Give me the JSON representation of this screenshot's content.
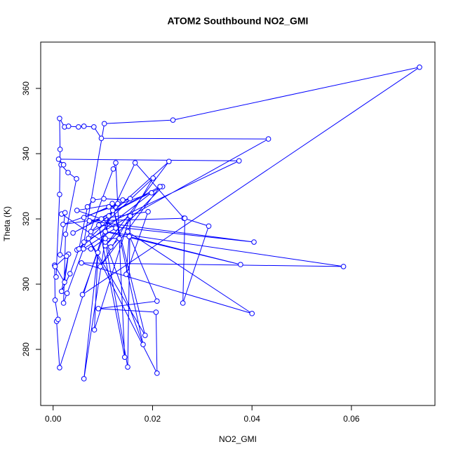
{
  "chart_data": {
    "type": "line",
    "title": "ATOM2 Southbound NO2_GMI",
    "x_label": "NO2_GMI",
    "y_label": "Theta (K)",
    "x": [
      0.0006,
      0.0013,
      0.0014,
      0.0013,
      0.0023,
      0.0031,
      0.0051,
      0.0062,
      0.0082,
      0.0097,
      0.0433,
      0.0062,
      0.0103,
      0.0241,
      0.0737,
      0.0059,
      0.012,
      0.0165,
      0.0263,
      0.0313,
      0.0261,
      0.0265,
      0.0073,
      0.0404,
      0.0092,
      0.0144,
      0.0126,
      0.0121,
      0.0028,
      0.0021,
      0.0025,
      0.0047,
      0.003,
      0.0016,
      0.0021,
      0.0011,
      0.0374,
      0.0076,
      0.0233,
      0.0105,
      0.022,
      0.004,
      0.0215,
      0.0095,
      0.0201,
      0.0048,
      0.0198,
      0.002,
      0.0191,
      0.0147,
      0.0153,
      0.0377,
      0.0105,
      0.0584,
      0.0057,
      0.04,
      0.015,
      0.0209,
      0.0091,
      0.0207,
      0.0209,
      0.0071,
      0.0185,
      0.0119,
      0.0181,
      0.0105,
      0.015,
      0.0155,
      0.0083,
      0.009,
      0.0062,
      0.0112,
      0.0013,
      0.0007,
      0.001,
      0.0004,
      0.0003,
      0.0023,
      0.0031,
      0.0017,
      0.0034,
      0.0052,
      0.0069,
      0.008,
      0.0102,
      0.014,
      0.0155,
      0.0062,
      0.0112,
      0.013,
      0.0048,
      0.0097,
      0.0126,
      0.0061,
      0.0076,
      0.0105,
      0.0133,
      0.0116,
      0.0017,
      0.0024,
      0.0014,
      0.0027,
      0.0004
    ],
    "series": [
      {
        "name": "Theta",
        "color": "#0000ff",
        "values": [
          302.2,
          327.5,
          341.3,
          350.8,
          348.2,
          348.4,
          348.2,
          348.4,
          348.2,
          344.7,
          344.5,
          312.9,
          349.2,
          350.3,
          366.5,
          296.8,
          322.6,
          337.2,
          320.2,
          317.8,
          294.2,
          320.2,
          319.4,
          312.9,
          318.1,
          277.6,
          337.2,
          335.3,
          297.2,
          294.2,
          315.3,
          332.3,
          334.2,
          336.6,
          336.6,
          338.3,
          337.8,
          316.1,
          337.6,
          311.8,
          329.9,
          315.7,
          329.9,
          305.4,
          332.5,
          310.5,
          328.0,
          318.3,
          322.2,
          303.0,
          314.6,
          306.0,
          316.1,
          305.4,
          306.5,
          291.0,
          316.1,
          294.8,
          292.5,
          291.4,
          272.7,
          314.0,
          284.3,
          324.7,
          281.5,
          312.9,
          274.6,
          320.9,
          286.0,
          309.7,
          271.0,
          320.9,
          274.4,
          288.6,
          289.2,
          295.1,
          305.8,
          300.6,
          309.2,
          297.8,
          303.2,
          310.8,
          323.7,
          325.8,
          326.2,
          325.8,
          326.2,
          320.4,
          323.7,
          324.7,
          322.6,
          320.0,
          317.2,
          310.8,
          310.8,
          314.0,
          314.0,
          311.4,
          321.5,
          321.9,
          309.0,
          308.6,
          305.4
        ]
      }
    ],
    "xlim": [
      -0.0025,
      0.0768
    ],
    "ylim": [
      262.8,
      374.2
    ],
    "xticks": [
      {
        "value": 0,
        "label": "0.00"
      },
      {
        "value": 0.02,
        "label": "0.02"
      },
      {
        "value": 0.04,
        "label": "0.04"
      },
      {
        "value": 0.06,
        "label": "0.06"
      }
    ],
    "yticks": [
      280,
      300,
      320,
      340,
      360
    ]
  }
}
